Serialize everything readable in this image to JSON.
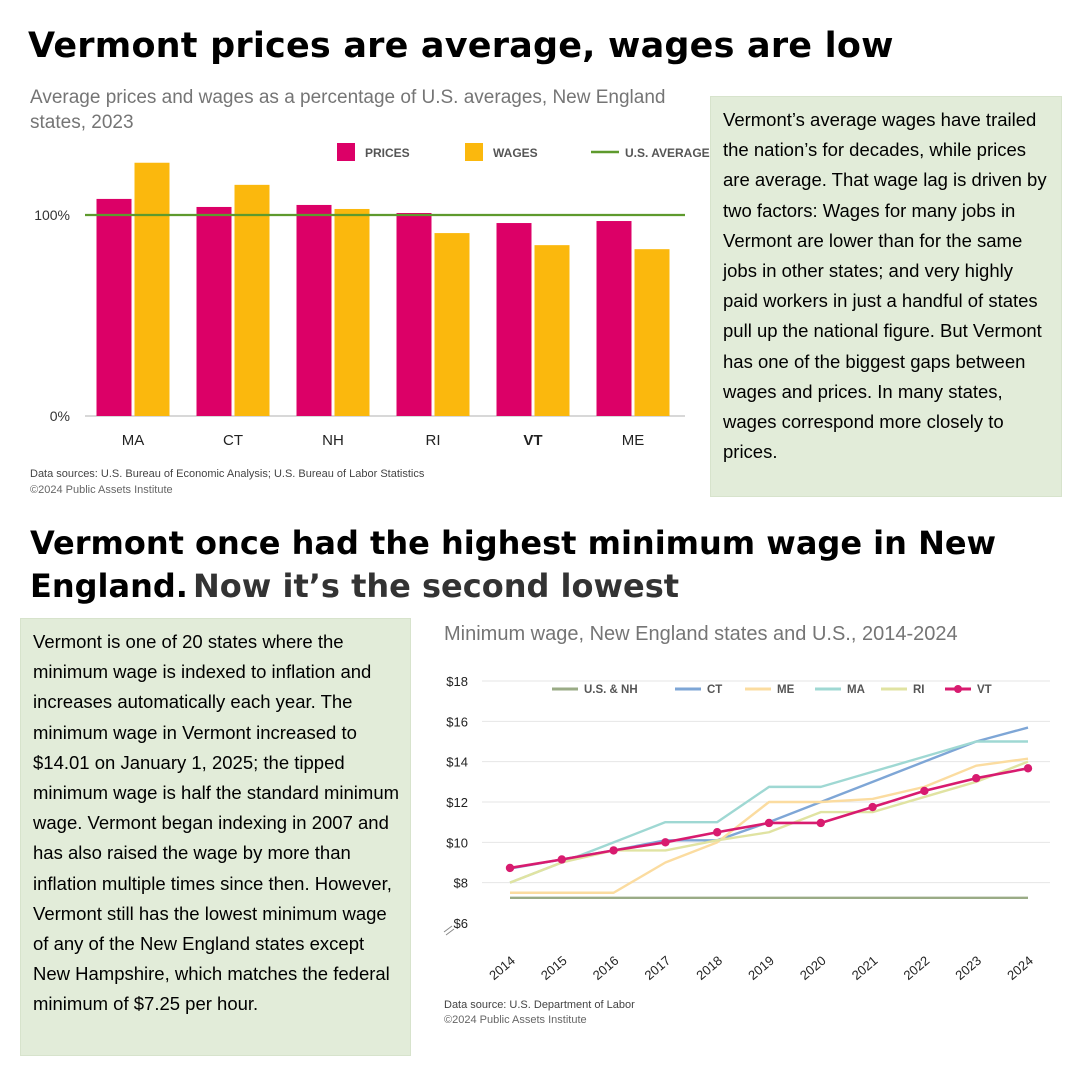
{
  "headline1": "Vermont prices are average, wages are low",
  "headline2_part1": "Vermont once had the highest minimum wage in New England.",
  "headline2_part2": "Now it’s the second lowest",
  "panel1_text": "Vermont’s average wages have trailed the nation’s for decades, while prices are average. That wage lag is driven by two factors: Wages for many jobs in Vermont are lower than for the same jobs in other states; and very highly paid workers in just a handful of states pull up the national figure. But Vermont has one of the biggest gaps between wages and prices. In many states, wages correspond more closely to prices.",
  "panel2_text": "Vermont is one of 20 states where the minimum wage is indexed to inflation and increases automatically each year. The minimum wage in Vermont increased to $14.01 on January 1, 2025; the tipped minimum wage is half the standard minimum wage. Vermont began indexing in 2007 and has also raised the wage by more than inflation multiple times since then. However, Vermont still has the lowest minimum wage of any of the New England states except New Hampshire, which matches the federal minimum of $7.25 per hour.",
  "chart1_source": "Data sources: U.S. Bureau of Economic Analysis; U.S. Bureau of Labor Statistics",
  "chart1_copyright": "©2024 Public Assets Institute",
  "chart2_source": "Data source: U.S. Department of Labor",
  "chart2_copyright": "©2024 Public Assets Institute",
  "colors": {
    "prices": "#dc0067",
    "wages": "#fbb80d",
    "us_average": "#5e9a2d",
    "panel_bg": "#e2ecd9"
  },
  "chart_data": [
    {
      "type": "bar",
      "title": "Average prices and wages as a percentage of U.S. averages, New England states, 2023",
      "categories": [
        "MA",
        "CT",
        "NH",
        "RI",
        "VT",
        "ME"
      ],
      "bold_category": "VT",
      "series": [
        {
          "name": "PRICES",
          "color": "#dc0067",
          "values": [
            108,
            104,
            105,
            101,
            96,
            97
          ]
        },
        {
          "name": "WAGES",
          "color": "#fbb80d",
          "values": [
            126,
            115,
            103,
            91,
            85,
            83
          ]
        }
      ],
      "reference_line": {
        "name": "U.S. AVERAGE",
        "value": 100,
        "color": "#5e9a2d"
      },
      "y_ticks": [
        {
          "value": 0,
          "label": "0%"
        },
        {
          "value": 100,
          "label": "100%"
        }
      ],
      "ylim": [
        0,
        130
      ],
      "legend_position": "top-right",
      "xlabel": "",
      "ylabel": ""
    },
    {
      "type": "line",
      "title": "Minimum wage, New England states and U.S., 2014-2024",
      "x": [
        "2014",
        "2015",
        "2016",
        "2017",
        "2018",
        "2019",
        "2020",
        "2021",
        "2022",
        "2023",
        "2024"
      ],
      "series": [
        {
          "name": "U.S. & NH",
          "color": "#9aab86",
          "values": [
            7.25,
            7.25,
            7.25,
            7.25,
            7.25,
            7.25,
            7.25,
            7.25,
            7.25,
            7.25,
            7.25
          ]
        },
        {
          "name": "CT",
          "color": "#7ea6d6",
          "values": [
            8.7,
            9.15,
            9.6,
            10.1,
            10.1,
            11.0,
            12.0,
            13.0,
            14.0,
            15.0,
            15.69
          ]
        },
        {
          "name": "ME",
          "color": "#fbdca0",
          "values": [
            7.5,
            7.5,
            7.5,
            9.0,
            10.0,
            12.0,
            12.0,
            12.15,
            12.75,
            13.8,
            14.15
          ]
        },
        {
          "name": "MA",
          "color": "#9fd8d3",
          "values": [
            8.0,
            9.0,
            10.0,
            11.0,
            11.0,
            12.75,
            12.75,
            13.5,
            14.25,
            15.0,
            15.0
          ]
        },
        {
          "name": "RI",
          "color": "#e0e3a2",
          "values": [
            8.0,
            9.0,
            9.6,
            9.6,
            10.1,
            10.5,
            11.5,
            11.5,
            12.25,
            13.0,
            14.0
          ]
        },
        {
          "name": "VT",
          "color": "#d81b6f",
          "markers": true,
          "values": [
            8.73,
            9.15,
            9.6,
            10.0,
            10.5,
            10.96,
            10.96,
            11.75,
            12.55,
            13.18,
            13.67
          ]
        }
      ],
      "y_ticks": [
        "$6",
        "$8",
        "$10",
        "$12",
        "$14",
        "$16",
        "$18"
      ],
      "ylim": [
        6,
        18
      ],
      "y_axis_break": true,
      "legend_position": "top",
      "xlabel": "",
      "ylabel": ""
    }
  ]
}
